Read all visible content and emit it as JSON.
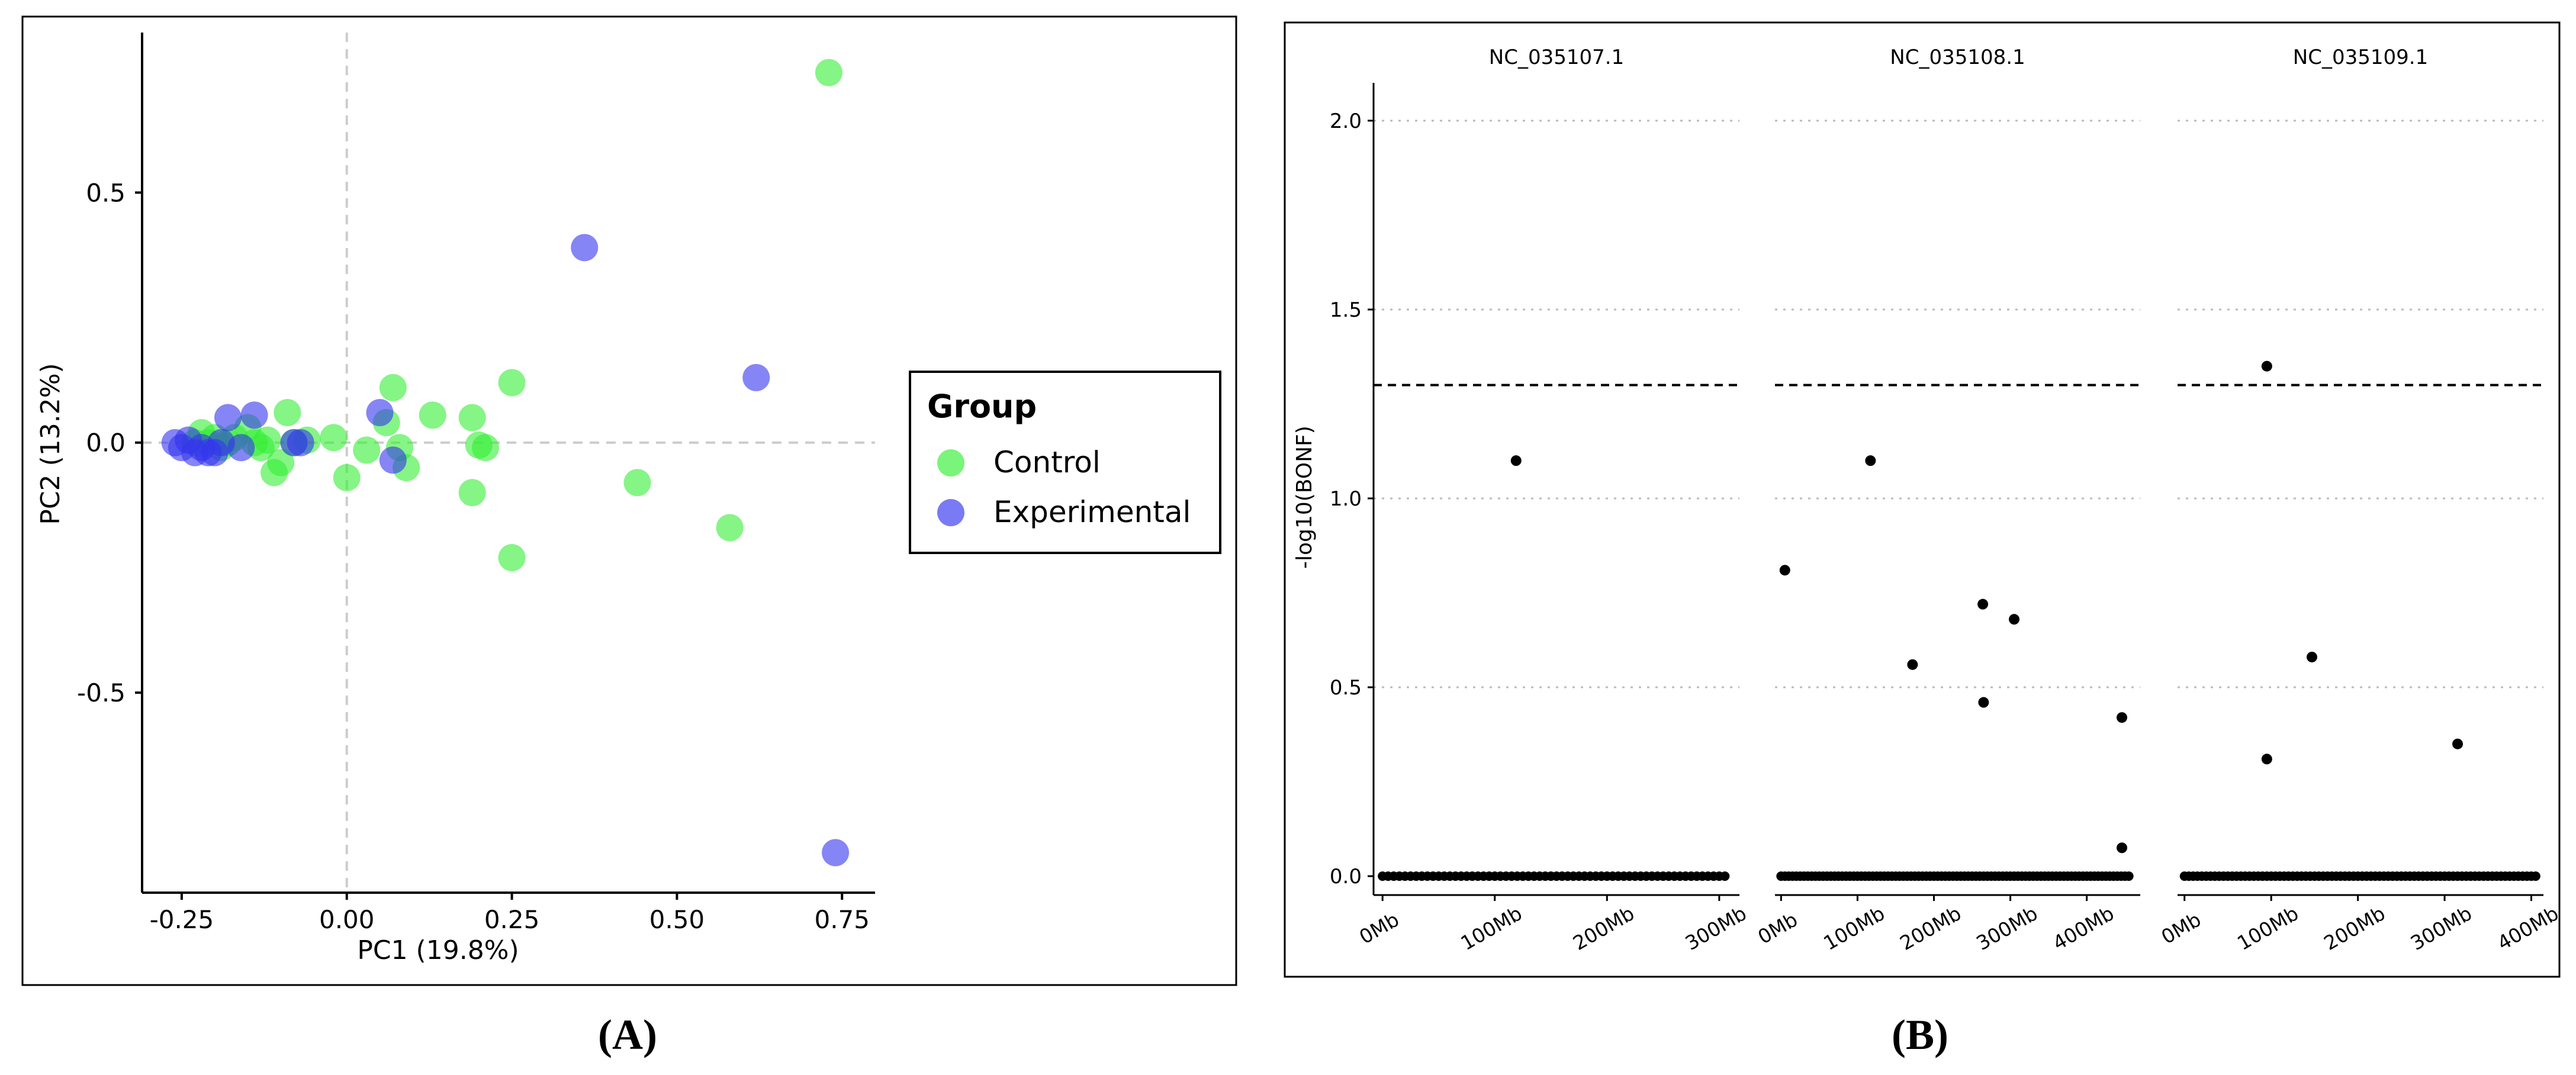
{
  "colors": {
    "control": "#33ee33",
    "experimental": "#3333ee",
    "axis": "#000000",
    "zero_line": "#cccccc",
    "grid": "#bbbbbb"
  },
  "panel_labels": {
    "a": "(A)",
    "b": "(B)"
  },
  "chart_data": [
    {
      "type": "scatter",
      "title": "",
      "xlabel": "PC1 (19.8%)",
      "ylabel": "PC2 (13.2%)",
      "xlim": [
        -0.31,
        0.8
      ],
      "ylim": [
        -0.9,
        0.82
      ],
      "xticks": [
        -0.25,
        0.0,
        0.25,
        0.5,
        0.75
      ],
      "xtick_labels": [
        "-0.25",
        "0.00",
        "0.25",
        "0.50",
        "0.75"
      ],
      "yticks": [
        -0.5,
        0.0,
        0.5
      ],
      "ytick_labels": [
        "-0.5",
        "0.0",
        "0.5"
      ],
      "legend": {
        "title": "Group",
        "position": "right",
        "entries": [
          "Control",
          "Experimental"
        ]
      },
      "series": [
        {
          "name": "Control",
          "points": [
            [
              0.73,
              0.74
            ],
            [
              0.25,
              0.12
            ],
            [
              0.07,
              0.11
            ],
            [
              0.13,
              0.055
            ],
            [
              0.19,
              0.05
            ],
            [
              0.06,
              0.04
            ],
            [
              -0.09,
              0.06
            ],
            [
              -0.23,
              0.0
            ],
            [
              -0.22,
              0.02
            ],
            [
              -0.21,
              0.0
            ],
            [
              -0.2,
              0.01
            ],
            [
              -0.19,
              -0.01
            ],
            [
              -0.18,
              0.0
            ],
            [
              -0.17,
              0.01
            ],
            [
              -0.15,
              0.03
            ],
            [
              -0.14,
              0.0
            ],
            [
              -0.13,
              -0.01
            ],
            [
              -0.12,
              0.005
            ],
            [
              -0.11,
              -0.06
            ],
            [
              -0.1,
              -0.04
            ],
            [
              -0.08,
              0.0
            ],
            [
              -0.06,
              0.005
            ],
            [
              -0.02,
              0.01
            ],
            [
              0.0,
              -0.07
            ],
            [
              0.03,
              -0.015
            ],
            [
              0.08,
              -0.01
            ],
            [
              0.09,
              -0.05
            ],
            [
              0.19,
              -0.1
            ],
            [
              0.2,
              -0.005
            ],
            [
              0.21,
              -0.01
            ],
            [
              0.44,
              -0.08
            ],
            [
              0.58,
              -0.17
            ],
            [
              0.25,
              -0.23
            ]
          ]
        },
        {
          "name": "Experimental",
          "points": [
            [
              0.36,
              0.39
            ],
            [
              0.62,
              0.13
            ],
            [
              0.74,
              -0.82
            ],
            [
              0.05,
              0.06
            ],
            [
              -0.14,
              0.055
            ],
            [
              -0.18,
              0.05
            ],
            [
              -0.07,
              0.0
            ],
            [
              -0.08,
              0.0
            ],
            [
              -0.26,
              0.0
            ],
            [
              -0.25,
              -0.01
            ],
            [
              -0.24,
              0.005
            ],
            [
              -0.23,
              -0.02
            ],
            [
              -0.22,
              -0.01
            ],
            [
              -0.21,
              -0.02
            ],
            [
              -0.2,
              -0.02
            ],
            [
              -0.19,
              0.0
            ],
            [
              -0.16,
              -0.01
            ],
            [
              0.07,
              -0.035
            ]
          ]
        }
      ]
    },
    {
      "type": "scatter",
      "subtype": "manhattan-faceted",
      "ylabel": "-log10(BONF)",
      "ylim": [
        -0.05,
        2.1
      ],
      "yticks": [
        0.0,
        0.5,
        1.0,
        1.5,
        2.0
      ],
      "ytick_labels": [
        "0.0",
        "0.5",
        "1.0",
        "1.5",
        "2.0"
      ],
      "threshold": 1.3,
      "facets": [
        {
          "name": "NC_035107.1",
          "xlim_mb": [
            -8,
            318
          ],
          "xticks_mb": [
            0,
            100,
            200,
            300
          ],
          "xtick_labels": [
            "0Mb",
            "100Mb",
            "200Mb",
            "300Mb"
          ],
          "length_mb": 305,
          "highlight": [
            [
              119,
              1.1
            ]
          ]
        },
        {
          "name": "NC_035108.1",
          "xlim_mb": [
            -8,
            470
          ],
          "xticks_mb": [
            0,
            100,
            200,
            300,
            400
          ],
          "xtick_labels": [
            "0Mb",
            "100Mb",
            "200Mb",
            "300Mb",
            "400Mb"
          ],
          "length_mb": 455,
          "highlight": [
            [
              5,
              0.81
            ],
            [
              117,
              1.1
            ],
            [
              172,
              0.56
            ],
            [
              264,
              0.72
            ],
            [
              305,
              0.68
            ],
            [
              265,
              0.46
            ],
            [
              446,
              0.42
            ],
            [
              446,
              0.075
            ]
          ]
        },
        {
          "name": "NC_035109.1",
          "xlim_mb": [
            -8,
            414
          ],
          "xticks_mb": [
            0,
            100,
            200,
            300,
            400
          ],
          "xtick_labels": [
            "0Mb",
            "100Mb",
            "200Mb",
            "300Mb",
            "400Mb"
          ],
          "length_mb": 405,
          "highlight": [
            [
              95,
              1.35
            ],
            [
              147,
              0.58
            ],
            [
              95,
              0.31
            ],
            [
              315,
              0.35
            ]
          ]
        }
      ]
    }
  ]
}
